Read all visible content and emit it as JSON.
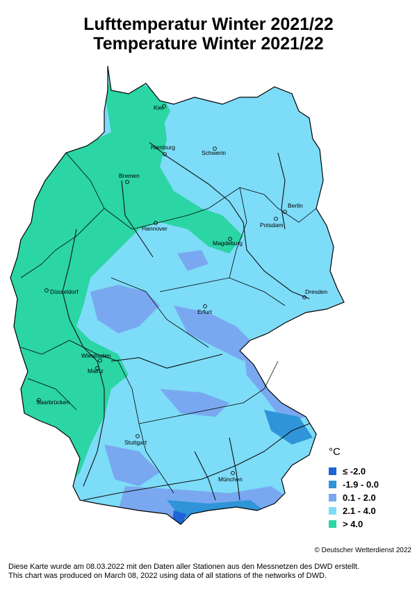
{
  "title": {
    "line1": "Lufttemperatur Winter 2021/22",
    "line2": "Temperature Winter 2021/22"
  },
  "legend": {
    "unit": "°C",
    "items": [
      {
        "label": "≤  -2.0",
        "color": "#1f63d6"
      },
      {
        "label": "-1.9 - 0.0",
        "color": "#2f94d8"
      },
      {
        "label": "0.1 - 2.0",
        "color": "#79a8f0"
      },
      {
        "label": "2.1 - 4.0",
        "color": "#7ddcf8"
      },
      {
        "label": "> 4.0",
        "color": "#2bd5a4"
      }
    ]
  },
  "cities": [
    {
      "name": "Kiel"
    },
    {
      "name": "Hamburg"
    },
    {
      "name": "Schwerin"
    },
    {
      "name": "Bremen"
    },
    {
      "name": "Berlin"
    },
    {
      "name": "Potsdam"
    },
    {
      "name": "Hannover"
    },
    {
      "name": "Magdeburg"
    },
    {
      "name": "Düsseldorf"
    },
    {
      "name": "Dresden"
    },
    {
      "name": "Erfurt"
    },
    {
      "name": "Wiesbaden"
    },
    {
      "name": "Mainz"
    },
    {
      "name": "Saarbrücken"
    },
    {
      "name": "Stuttgart"
    },
    {
      "name": "München"
    }
  ],
  "copyright": "© Deutscher Wetterdienst 2022",
  "footer": {
    "line1": "Diese Karte wurde am 08.03.2022 mit den Daten aller Stationen aus den Messnetzen des DWD erstellt.",
    "line2": "This chart was produced on March 08, 2022 using data of all stations of the networks of DWD."
  }
}
